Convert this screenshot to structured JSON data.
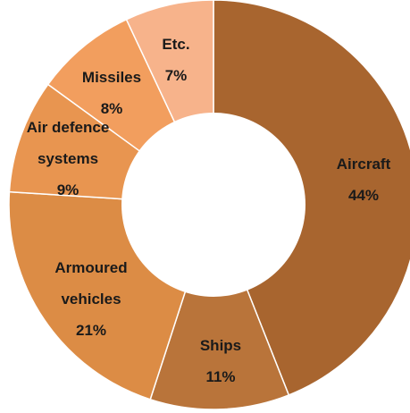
{
  "chart_data": {
    "type": "pie",
    "donut": true,
    "slices": [
      {
        "label_lines": [
          "Aircraft"
        ],
        "value": 44,
        "value_label": "44%",
        "color": "#A8652F"
      },
      {
        "label_lines": [
          "Ships"
        ],
        "value": 11,
        "value_label": "11%",
        "color": "#B9743A"
      },
      {
        "label_lines": [
          "Armoured",
          "vehicles"
        ],
        "value": 21,
        "value_label": "21%",
        "color": "#DC8C45"
      },
      {
        "label_lines": [
          "Air defence",
          "systems"
        ],
        "value": 9,
        "value_label": "9%",
        "color": "#E89550"
      },
      {
        "label_lines": [
          "Missiles"
        ],
        "value": 8,
        "value_label": "8%",
        "color": "#F29E5E"
      },
      {
        "label_lines": [
          "Etc."
        ],
        "value": 7,
        "value_label": "7%",
        "color": "#F7B38B"
      }
    ]
  }
}
